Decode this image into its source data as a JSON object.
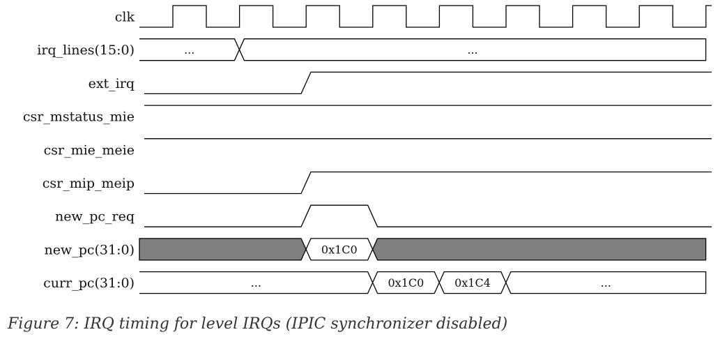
{
  "diagram": {
    "type": "timing",
    "colors": {
      "line": "#000000",
      "fill": "#808080",
      "text": "#111111",
      "caption": "#333333"
    },
    "signals": [
      {
        "name": "clk",
        "kind": "clock"
      },
      {
        "name": "irq_lines(15:0)",
        "kind": "bus",
        "segments": [
          {
            "value": "...",
            "cycles": [
              0,
              1.5
            ]
          },
          {
            "value": "...",
            "cycles": [
              1.5,
              8.5
            ]
          }
        ]
      },
      {
        "name": "ext_irq",
        "kind": "level",
        "transitions": [
          {
            "at": 2.5,
            "to": 1
          }
        ],
        "initial": 0
      },
      {
        "name": "csr_mstatus_mie",
        "kind": "level",
        "transitions": [],
        "initial": 1
      },
      {
        "name": "csr_mie_meie",
        "kind": "level",
        "transitions": [],
        "initial": 1
      },
      {
        "name": "csr_mip_meip",
        "kind": "level",
        "transitions": [
          {
            "at": 2.5,
            "to": 1
          }
        ],
        "initial": 0
      },
      {
        "name": "new_pc_req",
        "kind": "level",
        "transitions": [
          {
            "at": 2.5,
            "to": 1
          },
          {
            "at": 3.5,
            "to": 0
          }
        ],
        "initial": 0
      },
      {
        "name": "new_pc(31:0)",
        "kind": "bus",
        "segments": [
          {
            "value": "",
            "fill": true,
            "cycles": [
              0,
              2.5
            ]
          },
          {
            "value": "0x1C0",
            "cycles": [
              2.5,
              3.5
            ]
          },
          {
            "value": "",
            "fill": true,
            "cycles": [
              3.5,
              8.5
            ]
          }
        ]
      },
      {
        "name": "curr_pc(31:0)",
        "kind": "bus",
        "segments": [
          {
            "value": "...",
            "cycles": [
              0,
              3.5
            ]
          },
          {
            "value": "0x1C0",
            "cycles": [
              3.5,
              4.5
            ]
          },
          {
            "value": "0x1C4",
            "cycles": [
              4.5,
              5.5
            ]
          },
          {
            "value": "...",
            "cycles": [
              5.5,
              8.5
            ]
          }
        ]
      }
    ]
  },
  "caption": "Figure 7: IRQ timing for level IRQs (IPIC synchronizer disabled)"
}
